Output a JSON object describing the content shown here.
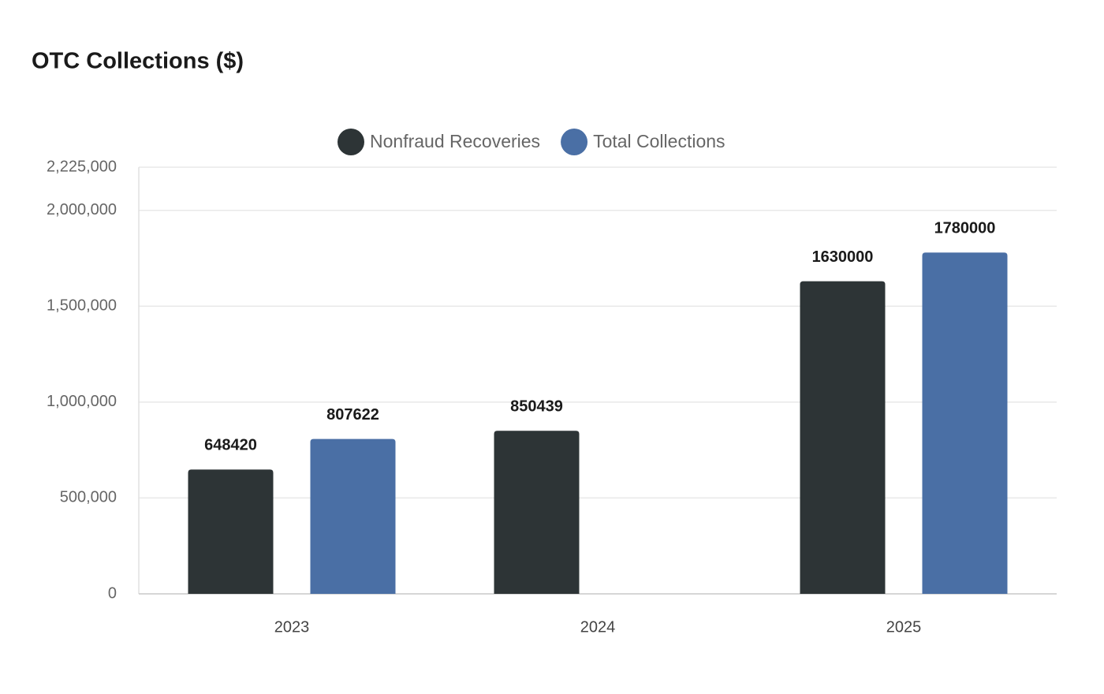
{
  "chart_data": {
    "type": "bar",
    "title": "OTC Collections ($)",
    "categories": [
      "2023",
      "2024",
      "2025"
    ],
    "series": [
      {
        "name": "Nonfraud Recoveries",
        "color": "#2d3436",
        "values": [
          648420,
          850439,
          1630000
        ]
      },
      {
        "name": "Total Collections",
        "color": "#4a6fa5",
        "values": [
          807622,
          null,
          1780000
        ]
      }
    ],
    "ylim": [
      0,
      2225000
    ],
    "yticks": [
      0,
      {
        "value": 500000,
        "label": "500,000"
      },
      {
        "value": 1000000,
        "label": "1,000,000"
      },
      {
        "value": 1500000,
        "label": "1,500,000"
      },
      {
        "value": 2000000,
        "label": "2,000,000"
      },
      {
        "value": 2225000,
        "label": "2,225,000"
      }
    ],
    "grid": true,
    "legend": "top"
  }
}
